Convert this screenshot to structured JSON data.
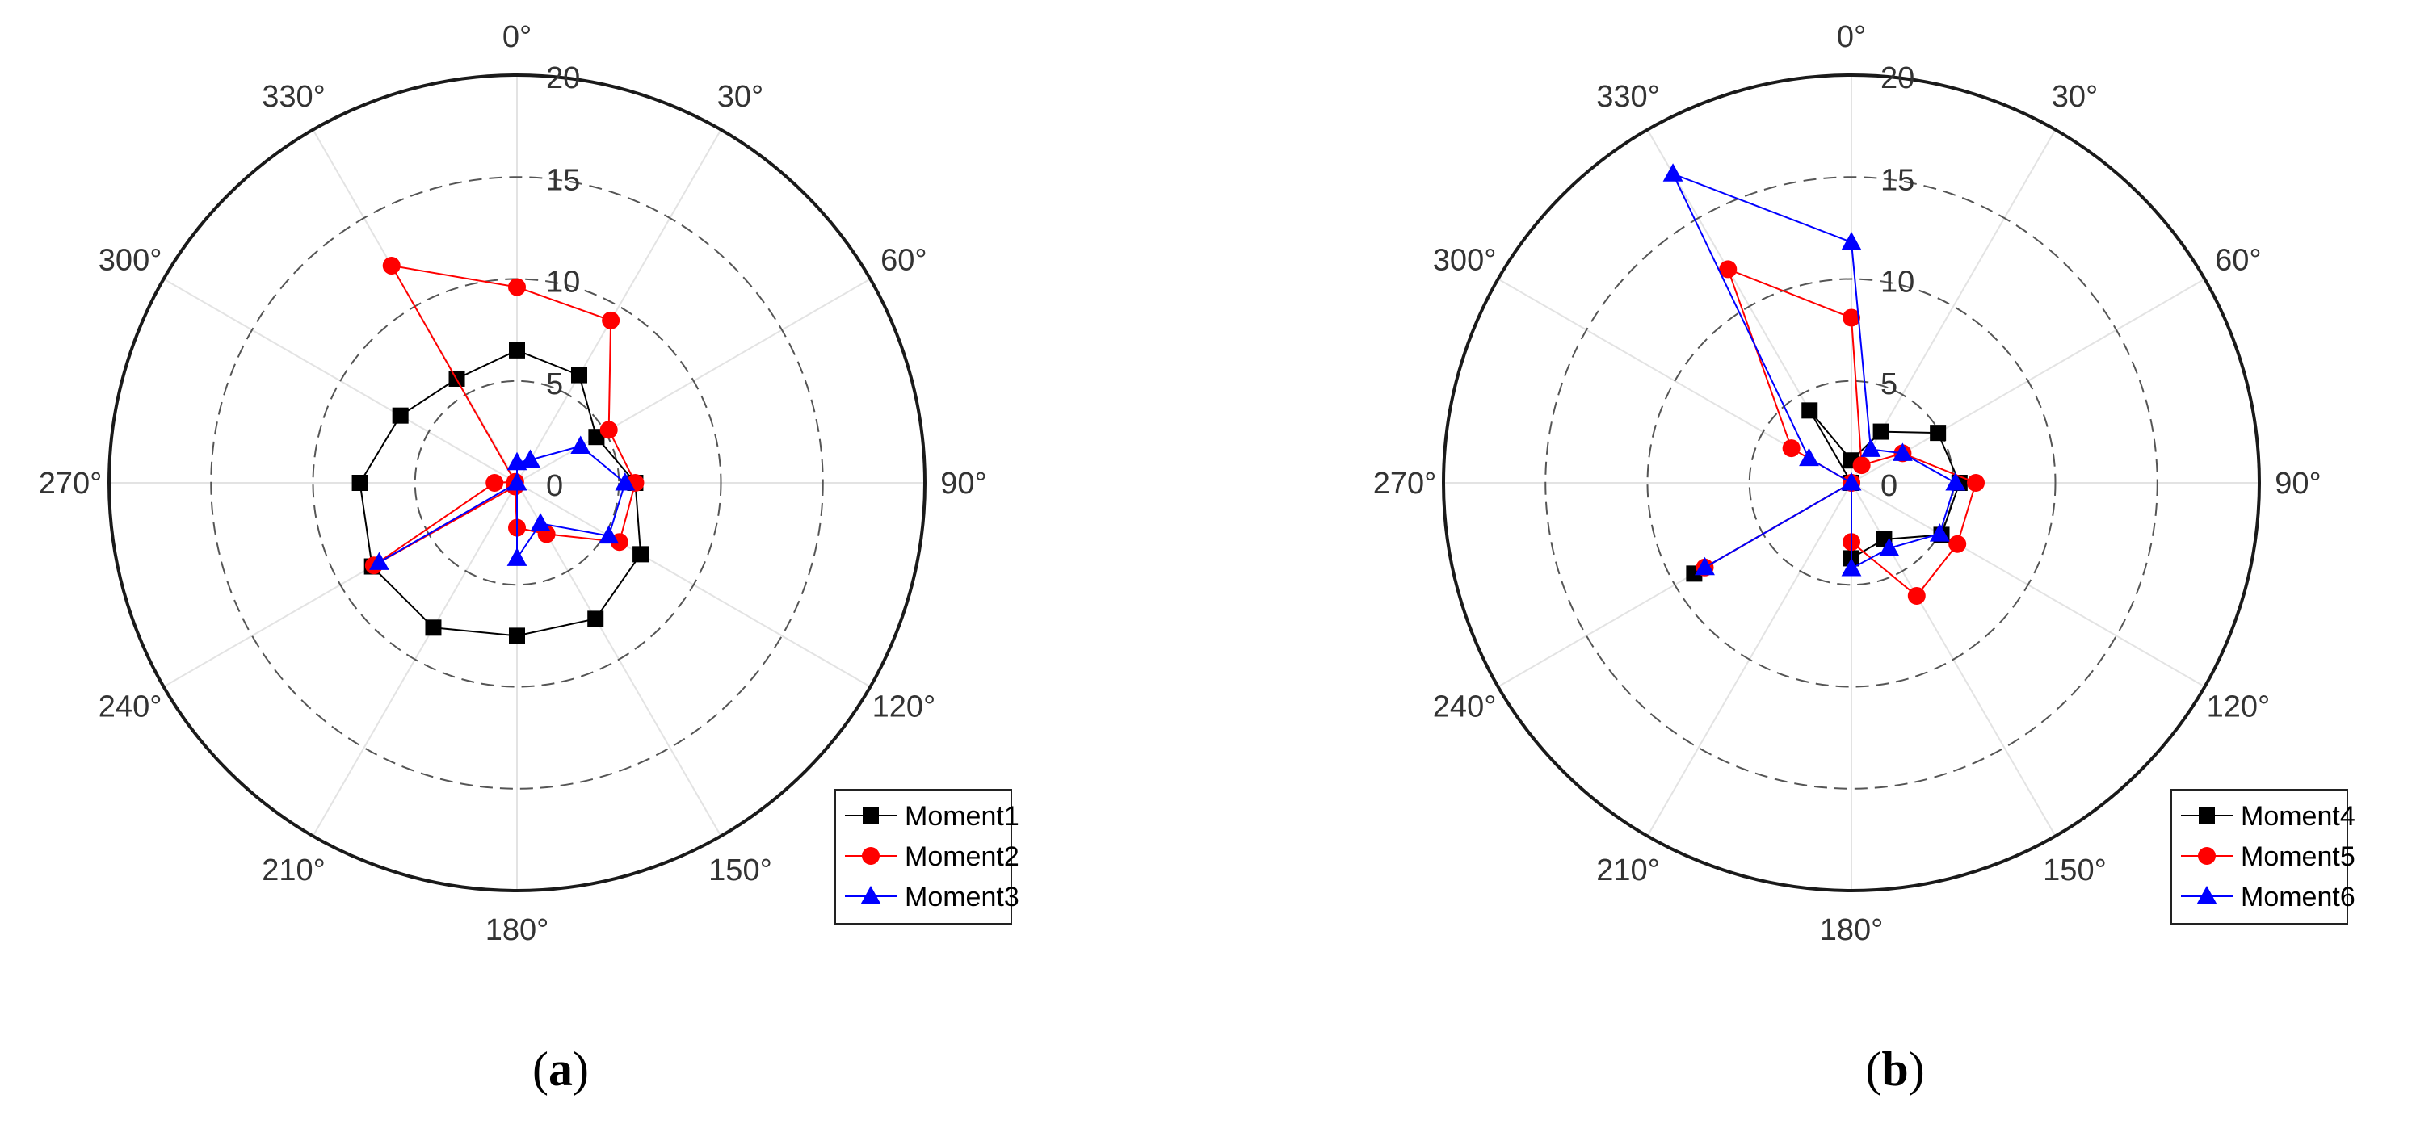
{
  "chart_data": [
    {
      "type": "polar-line",
      "caption": "a",
      "angle_ticks": [
        "0°",
        "30°",
        "60°",
        "90°",
        "120°",
        "150°",
        "180°",
        "210°",
        "240°",
        "270°",
        "300°",
        "330°"
      ],
      "angle_values": [
        0,
        30,
        60,
        90,
        120,
        150,
        180,
        210,
        240,
        270,
        300,
        330
      ],
      "radial_ticks": [
        "0",
        "5",
        "10",
        "15",
        "20"
      ],
      "radial_values": [
        0,
        5,
        10,
        15,
        20
      ],
      "rlim": [
        0,
        20
      ],
      "angle_zero": "top",
      "angle_direction": "clockwise",
      "grid": true,
      "legend_position": "bottom-right",
      "series": [
        {
          "name": "Moment1",
          "color": "#000000",
          "marker": "square",
          "theta": [
            0,
            30,
            60,
            90,
            120,
            150,
            180,
            210,
            240,
            270,
            300,
            330
          ],
          "r": [
            6.5,
            6.1,
            4.5,
            5.8,
            7.0,
            7.7,
            7.5,
            8.2,
            8.2,
            7.7,
            6.6,
            5.9
          ]
        },
        {
          "name": "Moment2",
          "color": "#ff0000",
          "marker": "circle",
          "theta": [
            0,
            30,
            60,
            90,
            120,
            150,
            180,
            210,
            240,
            270,
            300,
            330
          ],
          "r": [
            9.6,
            9.2,
            5.2,
            5.8,
            5.8,
            2.9,
            2.2,
            0.2,
            8.1,
            1.1,
            0.1,
            12.3
          ]
        },
        {
          "name": "Moment3",
          "color": "#0000ff",
          "marker": "triangle",
          "theta": [
            0,
            30,
            60,
            90,
            120,
            150,
            180,
            210,
            240,
            270,
            300,
            330
          ],
          "r": [
            1.0,
            1.3,
            3.6,
            5.3,
            5.2,
            2.3,
            3.7,
            0.0,
            7.8,
            0.0,
            0.0,
            0.0
          ]
        }
      ]
    },
    {
      "type": "polar-line",
      "caption": "b",
      "angle_ticks": [
        "0°",
        "30°",
        "60°",
        "90°",
        "120°",
        "150°",
        "180°",
        "210°",
        "240°",
        "270°",
        "300°",
        "330°"
      ],
      "angle_values": [
        0,
        30,
        60,
        90,
        120,
        150,
        180,
        210,
        240,
        270,
        300,
        330
      ],
      "radial_ticks": [
        "0",
        "5",
        "10",
        "15",
        "20"
      ],
      "radial_values": [
        0,
        5,
        10,
        15,
        20
      ],
      "rlim": [
        0,
        20
      ],
      "angle_zero": "top",
      "angle_direction": "clockwise",
      "grid": true,
      "legend_position": "bottom-right",
      "series": [
        {
          "name": "Moment4",
          "color": "#000000",
          "marker": "square",
          "theta": [
            0,
            30,
            60,
            90,
            120,
            150,
            180,
            210,
            240,
            270,
            300,
            330
          ],
          "r": [
            1.1,
            2.9,
            4.9,
            5.3,
            5.1,
            3.2,
            3.7,
            0.0,
            8.9,
            0.0,
            0.0,
            4.1
          ]
        },
        {
          "name": "Moment5",
          "color": "#ff0000",
          "marker": "circle",
          "theta": [
            0,
            30,
            60,
            90,
            120,
            150,
            180,
            210,
            240,
            270,
            300,
            330
          ],
          "r": [
            8.1,
            1.0,
            2.9,
            6.1,
            6.0,
            6.4,
            2.9,
            0.0,
            8.3,
            0.0,
            3.4,
            12.1
          ]
        },
        {
          "name": "Moment6",
          "color": "#0000ff",
          "marker": "triangle",
          "theta": [
            0,
            30,
            60,
            90,
            120,
            150,
            180,
            210,
            240,
            270,
            300,
            330
          ],
          "r": [
            11.8,
            1.9,
            2.9,
            5.1,
            5.0,
            3.7,
            4.2,
            0.0,
            8.3,
            0.0,
            2.4,
            17.5
          ]
        }
      ]
    }
  ]
}
